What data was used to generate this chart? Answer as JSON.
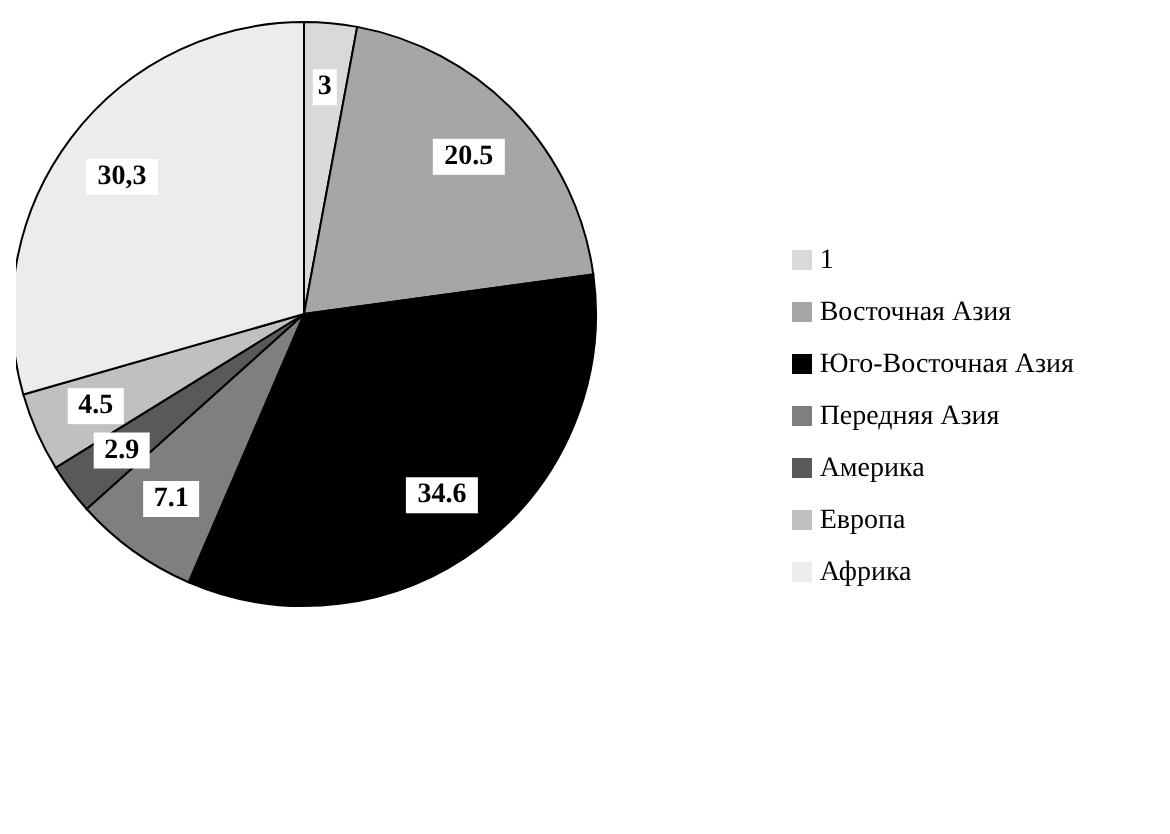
{
  "chart_data": {
    "type": "pie",
    "categories": [
      "1",
      "Восточная Азия",
      "Юго-Восточная Азия",
      "Передняя Азия",
      "Америка",
      "Европа",
      "Африка"
    ],
    "values": [
      3,
      20.5,
      34.6,
      7.1,
      2.9,
      4.5,
      30.3
    ],
    "value_labels": [
      "3",
      "20.5",
      "34.6",
      "7.1",
      "2.9",
      "4.5",
      "30,3"
    ],
    "colors": [
      "#d9d9d9",
      "#a6a6a6",
      "#000000",
      "#7f7f7f",
      "#595959",
      "#c0c0c0",
      "#ececec"
    ],
    "legend": "right"
  }
}
